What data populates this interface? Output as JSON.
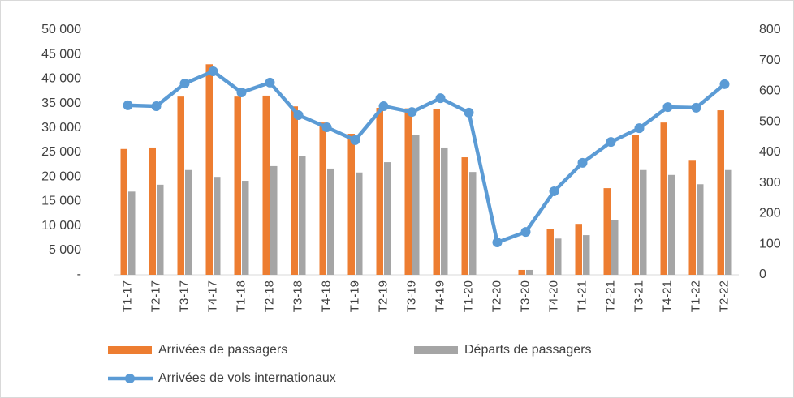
{
  "chart_data": {
    "type": "bar_line",
    "categories": [
      "T1-17",
      "T2-17",
      "T3-17",
      "T4-17",
      "T1-18",
      "T2-18",
      "T3-18",
      "T4-18",
      "T1-19",
      "T2-19",
      "T3-19",
      "T4-19",
      "T1-20",
      "T2-20",
      "T3-20",
      "T4-20",
      "T1-21",
      "T2-21",
      "T3-21",
      "T4-21",
      "T1-22",
      "T2-22"
    ],
    "series": [
      {
        "name": "Arrivées de passagers",
        "type": "bar",
        "color": "#ed7d31",
        "values": [
          25700,
          26000,
          36400,
          43000,
          36400,
          36600,
          34400,
          31100,
          28800,
          34100,
          34000,
          33800,
          24000,
          0,
          1000,
          9400,
          10400,
          17700,
          28500,
          31100,
          23300,
          33600
        ]
      },
      {
        "name": "Départs de passagers",
        "type": "bar",
        "color": "#a5a5a5",
        "values": [
          17000,
          18400,
          21400,
          20000,
          19200,
          22200,
          24200,
          21700,
          20900,
          23000,
          28600,
          26000,
          21000,
          0,
          1000,
          7400,
          8100,
          11100,
          21400,
          20400,
          18500,
          21400
        ]
      },
      {
        "name": "Arrivées de vols internationaux",
        "type": "line",
        "axis": "y2",
        "color": "#5b9bd5",
        "values": [
          554,
          551,
          625,
          665,
          596,
          628,
          522,
          482,
          440,
          551,
          532,
          577,
          530,
          106,
          140,
          273,
          366,
          434,
          479,
          548,
          546,
          623
        ]
      }
    ],
    "ylim": [
      0,
      50000
    ],
    "yticks": [
      {
        "value": 0,
        "label": "-"
      },
      {
        "value": 5000,
        "label": "5 000"
      },
      {
        "value": 10000,
        "label": "10 000"
      },
      {
        "value": 15000,
        "label": "15 000"
      },
      {
        "value": 20000,
        "label": "20 000"
      },
      {
        "value": 25000,
        "label": "25 000"
      },
      {
        "value": 30000,
        "label": "30 000"
      },
      {
        "value": 35000,
        "label": "35 000"
      },
      {
        "value": 40000,
        "label": "40 000"
      },
      {
        "value": 45000,
        "label": "45 000"
      },
      {
        "value": 50000,
        "label": "50 000"
      }
    ],
    "y2lim": [
      0,
      800
    ],
    "y2ticks": [
      0,
      100,
      200,
      300,
      400,
      500,
      600,
      700,
      800
    ],
    "grid": false
  }
}
